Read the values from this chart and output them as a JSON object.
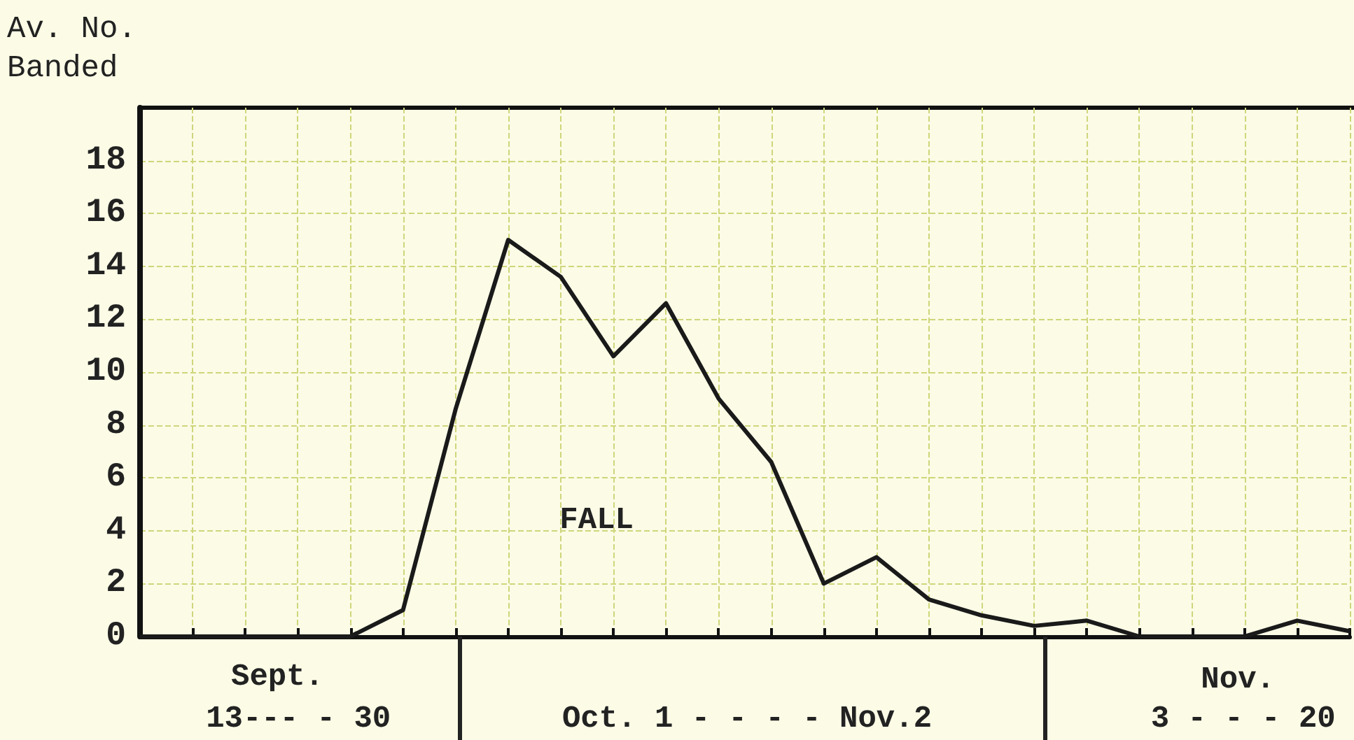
{
  "chart_data": {
    "type": "line",
    "ylabel": "Av. No.\nBanded",
    "categories": [
      null,
      null,
      null,
      null,
      null,
      null,
      null,
      null,
      null,
      null,
      null,
      null,
      null,
      null,
      null,
      null,
      null,
      null,
      null,
      null,
      null,
      null,
      null,
      null
    ],
    "series": [
      {
        "color": "#1a1a1a",
        "values": [
          0,
          0,
          0,
          0,
          0,
          1,
          8.6,
          15,
          13.6,
          10.6,
          12.6,
          9,
          6.6,
          2,
          3,
          1.4,
          0.8,
          0.4,
          0.6,
          0,
          0,
          0,
          0.6,
          0.2
        ]
      }
    ],
    "ylim": [
      0,
      20
    ],
    "yticks": [
      0,
      2,
      4,
      6,
      8,
      10,
      12,
      14,
      16,
      18
    ],
    "grid": true,
    "marker": "none",
    "line_style": "solid",
    "annotations": [
      "FALL",
      "Sept.",
      "13--- - 30",
      "Oct. 1 - - - - Nov.2",
      "Nov.",
      "3 - - - 20"
    ]
  }
}
